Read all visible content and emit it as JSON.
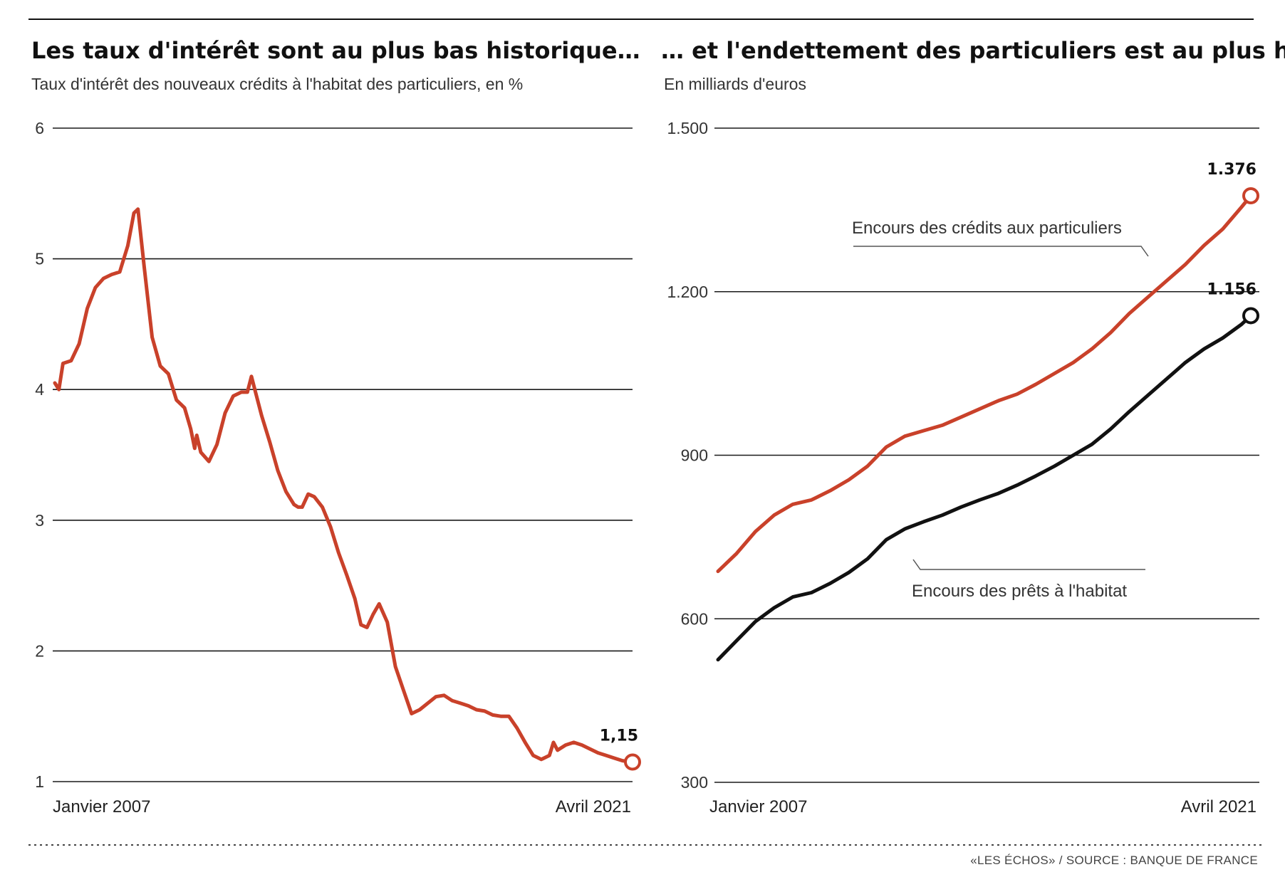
{
  "source": "«LES ÉCHOS» / SOURCE : BANQUE DE FRANCE",
  "colors": {
    "red": "#c9412a",
    "black": "#111111",
    "grid": "#1a1a1a"
  },
  "chart_data": [
    {
      "type": "line",
      "title": "Les taux d'intérêt sont au plus bas historique…",
      "subtitle": "Taux d'intérêt des nouveaux crédits à l'habitat des particuliers, en %",
      "ylim": [
        1,
        6
      ],
      "yticks": [
        "6",
        "5",
        "4",
        "3",
        "2",
        "1"
      ],
      "ytick_values": [
        6,
        5,
        4,
        3,
        2,
        1
      ],
      "xlim": [
        2007.0,
        2021.25
      ],
      "x_labels": {
        "start": "Janvier 2007",
        "end": "Avril 2021"
      },
      "grid": true,
      "series": [
        {
          "color": "#c9412a",
          "end_label": "1,15",
          "points": [
            [
              2007.0,
              4.05
            ],
            [
              2007.1,
              4.0
            ],
            [
              2007.2,
              4.2
            ],
            [
              2007.4,
              4.22
            ],
            [
              2007.6,
              4.35
            ],
            [
              2007.8,
              4.62
            ],
            [
              2008.0,
              4.78
            ],
            [
              2008.2,
              4.85
            ],
            [
              2008.4,
              4.88
            ],
            [
              2008.6,
              4.9
            ],
            [
              2008.8,
              5.1
            ],
            [
              2008.95,
              5.35
            ],
            [
              2009.05,
              5.38
            ],
            [
              2009.2,
              4.95
            ],
            [
              2009.4,
              4.4
            ],
            [
              2009.6,
              4.18
            ],
            [
              2009.8,
              4.12
            ],
            [
              2010.0,
              3.92
            ],
            [
              2010.2,
              3.86
            ],
            [
              2010.35,
              3.7
            ],
            [
              2010.45,
              3.55
            ],
            [
              2010.5,
              3.65
            ],
            [
              2010.6,
              3.52
            ],
            [
              2010.8,
              3.45
            ],
            [
              2011.0,
              3.58
            ],
            [
              2011.2,
              3.82
            ],
            [
              2011.4,
              3.95
            ],
            [
              2011.6,
              3.98
            ],
            [
              2011.75,
              3.98
            ],
            [
              2011.85,
              4.1
            ],
            [
              2011.95,
              3.98
            ],
            [
              2012.1,
              3.8
            ],
            [
              2012.3,
              3.6
            ],
            [
              2012.5,
              3.38
            ],
            [
              2012.7,
              3.22
            ],
            [
              2012.9,
              3.12
            ],
            [
              2013.0,
              3.1
            ],
            [
              2013.1,
              3.1
            ],
            [
              2013.25,
              3.2
            ],
            [
              2013.4,
              3.18
            ],
            [
              2013.6,
              3.1
            ],
            [
              2013.8,
              2.95
            ],
            [
              2014.0,
              2.75
            ],
            [
              2014.2,
              2.58
            ],
            [
              2014.4,
              2.4
            ],
            [
              2014.55,
              2.2
            ],
            [
              2014.7,
              2.18
            ],
            [
              2014.85,
              2.28
            ],
            [
              2015.0,
              2.36
            ],
            [
              2015.2,
              2.22
            ],
            [
              2015.4,
              1.88
            ],
            [
              2015.6,
              1.7
            ],
            [
              2015.8,
              1.52
            ],
            [
              2016.0,
              1.55
            ],
            [
              2016.2,
              1.6
            ],
            [
              2016.4,
              1.65
            ],
            [
              2016.6,
              1.66
            ],
            [
              2016.8,
              1.62
            ],
            [
              2017.0,
              1.6
            ],
            [
              2017.2,
              1.58
            ],
            [
              2017.4,
              1.55
            ],
            [
              2017.6,
              1.54
            ],
            [
              2017.8,
              1.51
            ],
            [
              2018.0,
              1.5
            ],
            [
              2018.2,
              1.5
            ],
            [
              2018.4,
              1.41
            ],
            [
              2018.6,
              1.3
            ],
            [
              2018.8,
              1.2
            ],
            [
              2019.0,
              1.17
            ],
            [
              2019.2,
              1.2
            ],
            [
              2019.3,
              1.3
            ],
            [
              2019.4,
              1.24
            ],
            [
              2019.6,
              1.28
            ],
            [
              2019.8,
              1.3
            ],
            [
              2020.0,
              1.28
            ],
            [
              2020.2,
              1.25
            ],
            [
              2020.4,
              1.22
            ],
            [
              2020.6,
              1.2
            ],
            [
              2020.8,
              1.18
            ],
            [
              2021.0,
              1.16
            ],
            [
              2021.25,
              1.15
            ]
          ]
        }
      ]
    },
    {
      "type": "line",
      "title": "… et l'endettement des particuliers est au plus haut",
      "subtitle": "En milliards d'euros",
      "ylim": [
        300,
        1500
      ],
      "yticks": [
        "1.500",
        "1.200",
        "900",
        "600",
        "300"
      ],
      "ytick_values": [
        1500,
        1200,
        900,
        600,
        300
      ],
      "xlim": [
        2007.0,
        2021.25
      ],
      "x_labels": {
        "start": "Janvier 2007",
        "end": "Avril 2021"
      },
      "grid": true,
      "series": [
        {
          "name": "Encours des crédits aux particuliers",
          "color": "#c9412a",
          "end_label": "1.376",
          "points": [
            [
              2007.0,
              687
            ],
            [
              2007.5,
              720
            ],
            [
              2008.0,
              760
            ],
            [
              2008.5,
              790
            ],
            [
              2009.0,
              810
            ],
            [
              2009.5,
              818
            ],
            [
              2010.0,
              835
            ],
            [
              2010.5,
              855
            ],
            [
              2011.0,
              880
            ],
            [
              2011.5,
              915
            ],
            [
              2012.0,
              935
            ],
            [
              2012.5,
              945
            ],
            [
              2013.0,
              955
            ],
            [
              2013.5,
              970
            ],
            [
              2014.0,
              985
            ],
            [
              2014.5,
              1000
            ],
            [
              2015.0,
              1012
            ],
            [
              2015.5,
              1030
            ],
            [
              2016.0,
              1050
            ],
            [
              2016.5,
              1070
            ],
            [
              2017.0,
              1095
            ],
            [
              2017.5,
              1125
            ],
            [
              2018.0,
              1160
            ],
            [
              2018.5,
              1190
            ],
            [
              2019.0,
              1220
            ],
            [
              2019.5,
              1250
            ],
            [
              2020.0,
              1285
            ],
            [
              2020.5,
              1315
            ],
            [
              2021.0,
              1355
            ],
            [
              2021.25,
              1376
            ]
          ]
        },
        {
          "name": "Encours des prêts à l'habitat",
          "color": "#111111",
          "end_label": "1.156",
          "points": [
            [
              2007.0,
              525
            ],
            [
              2007.5,
              560
            ],
            [
              2008.0,
              595
            ],
            [
              2008.5,
              620
            ],
            [
              2009.0,
              640
            ],
            [
              2009.5,
              648
            ],
            [
              2010.0,
              665
            ],
            [
              2010.5,
              685
            ],
            [
              2011.0,
              710
            ],
            [
              2011.5,
              745
            ],
            [
              2012.0,
              765
            ],
            [
              2012.5,
              778
            ],
            [
              2013.0,
              790
            ],
            [
              2013.5,
              805
            ],
            [
              2014.0,
              818
            ],
            [
              2014.5,
              830
            ],
            [
              2015.0,
              845
            ],
            [
              2015.5,
              862
            ],
            [
              2016.0,
              880
            ],
            [
              2016.5,
              900
            ],
            [
              2017.0,
              920
            ],
            [
              2017.5,
              948
            ],
            [
              2018.0,
              980
            ],
            [
              2018.5,
              1010
            ],
            [
              2019.0,
              1040
            ],
            [
              2019.5,
              1070
            ],
            [
              2020.0,
              1095
            ],
            [
              2020.5,
              1115
            ],
            [
              2021.0,
              1140
            ],
            [
              2021.25,
              1156
            ]
          ]
        }
      ]
    }
  ]
}
